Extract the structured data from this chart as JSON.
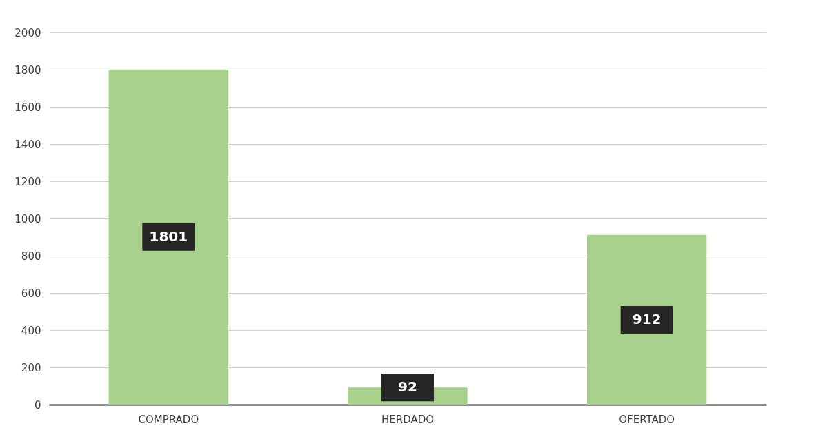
{
  "chart_data": {
    "type": "bar",
    "categories": [
      "COMPRADO",
      "HERDADO",
      "OFERTADO"
    ],
    "values": [
      1801,
      92,
      912
    ],
    "color": "#a9d18e",
    "ylim": [
      0,
      2000
    ],
    "yticks": [
      0,
      200,
      400,
      600,
      800,
      1000,
      1200,
      1400,
      1600,
      1800,
      2000
    ],
    "grid": "y",
    "data_labels": true
  }
}
